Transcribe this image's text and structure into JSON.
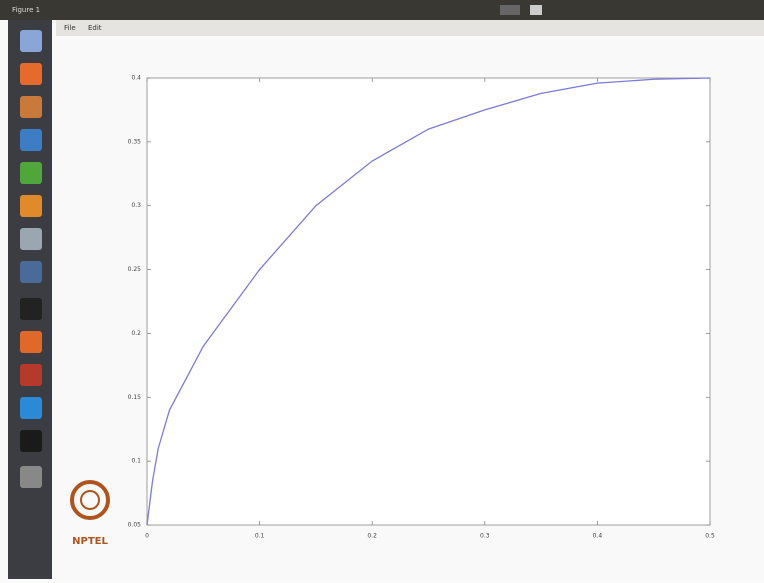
{
  "window": {
    "title": "Figure 1",
    "menu": [
      "File",
      "Edit"
    ]
  },
  "logo": "NPTEL",
  "chart_data": {
    "type": "line",
    "x": [
      0,
      0.005,
      0.01,
      0.02,
      0.05,
      0.1,
      0.15,
      0.2,
      0.25,
      0.3,
      0.35,
      0.4,
      0.45,
      0.5
    ],
    "series": [
      {
        "color": "#7b7bd8",
        "values": [
          0.05,
          0.085,
          0.11,
          0.14,
          0.19,
          0.25,
          0.3,
          0.335,
          0.36,
          0.375,
          0.388,
          0.396,
          0.399,
          0.4
        ]
      }
    ],
    "xlim": [
      0,
      0.5
    ],
    "xticks": [
      0,
      0.1,
      0.2,
      0.3,
      0.4,
      0.5
    ],
    "ylim": [
      0.05,
      0.4
    ],
    "yticks": [
      0.05,
      0.1,
      0.15,
      0.2,
      0.25,
      0.3,
      0.35,
      0.4
    ],
    "grid": false
  }
}
